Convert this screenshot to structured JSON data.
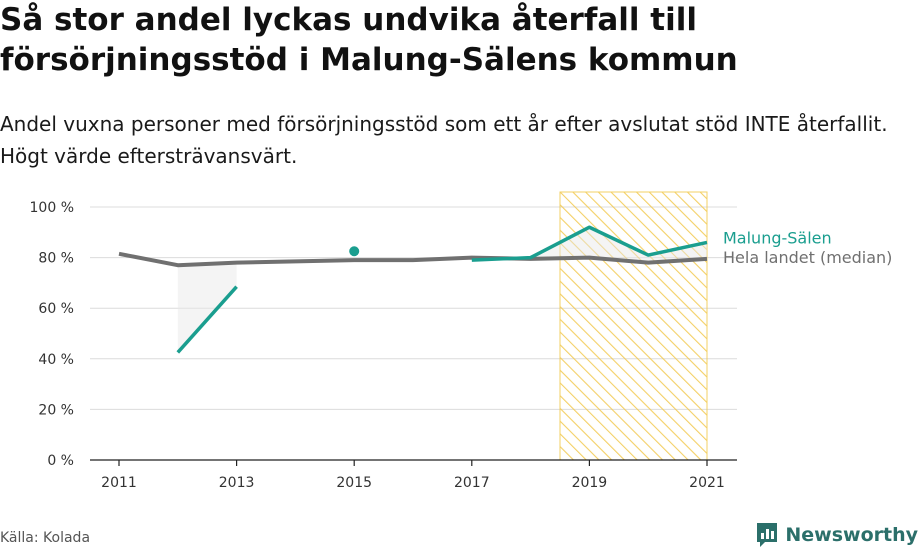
{
  "title": "Så stor andel lyckas undvika återfall till försörjningsstöd i Malung-Sälens kommun",
  "subtitle": "Andel vuxna personer med försörjningsstöd som ett år efter avslutat stöd INTE återfallit. Högt värde eftersträvansvärt.",
  "source": "Källa: Kolada",
  "brand": {
    "name": "Newsworthy",
    "icon": "newsworthy-logo-icon"
  },
  "colors": {
    "malung": "#1a9e8f",
    "median": "#707070",
    "highlight_stroke": "#f2c84b",
    "grid": "#dcdcdc",
    "brand": "#2b6f6a"
  },
  "chart_data": {
    "type": "line",
    "x": [
      2011,
      2012,
      2013,
      2014,
      2015,
      2016,
      2017,
      2018,
      2019,
      2020,
      2021
    ],
    "x_ticks": [
      "2011",
      "2013",
      "2015",
      "2017",
      "2019",
      "2021"
    ],
    "y_ticks": [
      "0 %",
      "20 %",
      "40 %",
      "60 %",
      "80 %",
      "100 %"
    ],
    "ylim": [
      0,
      100
    ],
    "grid": true,
    "highlight_range": [
      2018.5,
      2021
    ],
    "series": [
      {
        "name": "Malung-Sälen",
        "values": [
          null,
          42.5,
          68.5,
          null,
          82.5,
          null,
          79,
          80,
          92,
          81,
          86
        ]
      },
      {
        "name": "Hela landet (median)",
        "values": [
          81.5,
          77,
          78,
          78.5,
          79,
          79,
          80,
          79.5,
          80,
          78,
          79.5
        ]
      }
    ]
  }
}
